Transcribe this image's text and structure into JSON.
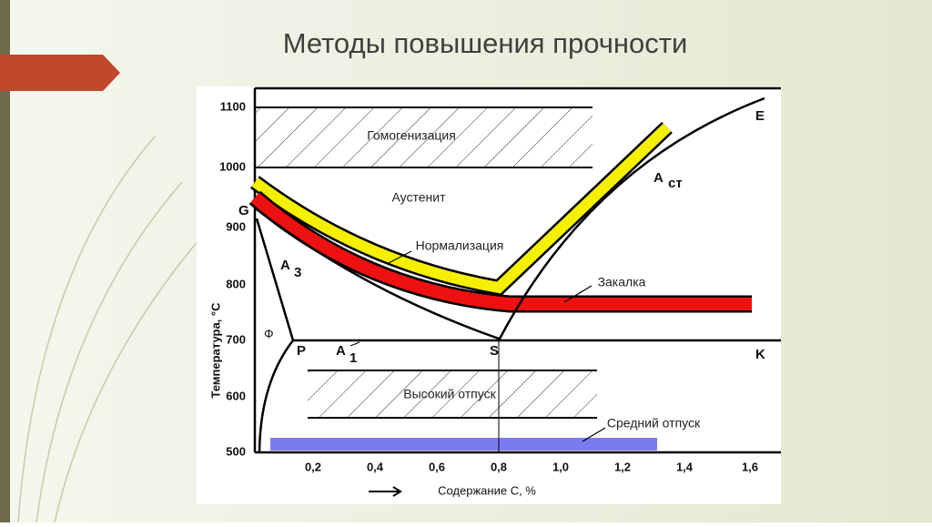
{
  "header": {
    "title": "Методы повышения прочности"
  },
  "diagram": {
    "y_axis": {
      "title": "Температура, °С",
      "ticks": [
        "1100",
        "1000",
        "900",
        "800",
        "700",
        "600",
        "500"
      ]
    },
    "x_axis": {
      "title": "Содержание С, %",
      "ticks": [
        "0,2",
        "0,4",
        "0,6",
        "0,8",
        "1,0",
        "1,2",
        "1,4",
        "1,6"
      ]
    },
    "regions": {
      "homogenization": "Гомогенизация",
      "austenite": "Аустенит",
      "normalization": "Нормализация",
      "quenching": "Закалка",
      "high_tempering": "Высокий отпуск",
      "medium_tempering": "Средний отпуск"
    },
    "points": {
      "G": "G",
      "A3": "А",
      "A3_sub": "3",
      "ferrite": "Ф",
      "P": "P",
      "A1": "А",
      "A1_sub": "1",
      "S": "S",
      "K": "K",
      "E": "E",
      "Acm": "А",
      "Acm_sub": "ст"
    }
  }
}
